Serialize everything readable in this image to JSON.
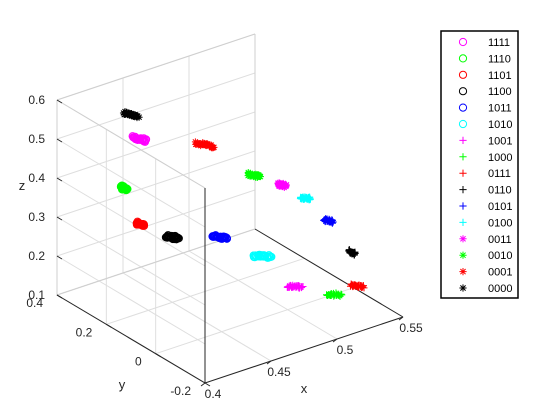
{
  "chart_data": {
    "type": "scatter",
    "projection": "3d",
    "xlabel": "x",
    "ylabel": "y",
    "zlabel": "z",
    "xlim": [
      0.4,
      0.55
    ],
    "ylim": [
      -0.2,
      0.4
    ],
    "zlim": [
      0.1,
      0.6
    ],
    "xticks": [
      "0.4",
      "0.45",
      "0.5",
      "0.55"
    ],
    "yticks": [
      "-0.2",
      "0",
      "0.2",
      "0.4"
    ],
    "zticks": [
      "0.1",
      "0.2",
      "0.3",
      "0.4",
      "0.5",
      "0.6"
    ],
    "grid": true,
    "legend_position": "right",
    "series": [
      {
        "name": "1111",
        "marker": "o",
        "color": "#ff00ff",
        "x": 0.44,
        "y": 0.28,
        "z": 0.5,
        "dx": 0.004,
        "dy": 0.03
      },
      {
        "name": "1110",
        "marker": "o",
        "color": "#00ff00",
        "x": 0.421,
        "y": 0.24,
        "z": 0.41,
        "dx": 0.001,
        "dy": 0.02
      },
      {
        "name": "1101",
        "marker": "o",
        "color": "#ff0000",
        "x": 0.422,
        "y": 0.18,
        "z": 0.34,
        "dx": 0.002,
        "dy": 0.02
      },
      {
        "name": "1100",
        "marker": "o",
        "color": "#000000",
        "x": 0.433,
        "y": 0.11,
        "z": 0.32,
        "dx": 0.004,
        "dy": 0.03
      },
      {
        "name": "1011",
        "marker": "o",
        "color": "#0000ff",
        "x": 0.456,
        "y": 0.04,
        "z": 0.32,
        "dx": 0.006,
        "dy": 0.03
      },
      {
        "name": "1010",
        "marker": "o",
        "color": "#00ffff",
        "x": 0.477,
        "y": -0.02,
        "z": 0.27,
        "dx": 0.008,
        "dy": 0.03
      },
      {
        "name": "1001",
        "marker": "+",
        "color": "#ff00ff",
        "x": 0.5,
        "y": -0.03,
        "z": 0.17,
        "dx": 0.008,
        "dy": 0.02
      },
      {
        "name": "1000",
        "marker": "+",
        "color": "#00ff00",
        "x": 0.522,
        "y": -0.07,
        "z": 0.14,
        "dx": 0.008,
        "dy": 0.02
      },
      {
        "name": "0111",
        "marker": "+",
        "color": "#ff0000",
        "x": 0.534,
        "y": -0.1,
        "z": 0.16,
        "dx": 0.006,
        "dy": 0.02
      },
      {
        "name": "0110",
        "marker": "+",
        "color": "#000000",
        "x": 0.53,
        "y": -0.1,
        "z": 0.25,
        "dx": 0.001,
        "dy": 0.02
      },
      {
        "name": "0101",
        "marker": "+",
        "color": "#0000ff",
        "x": 0.516,
        "y": -0.08,
        "z": 0.34,
        "dx": 0.003,
        "dy": 0.02
      },
      {
        "name": "0100",
        "marker": "+",
        "color": "#00ffff",
        "x": 0.504,
        "y": -0.05,
        "z": 0.4,
        "dx": 0.004,
        "dy": 0.02
      },
      {
        "name": "0011",
        "marker": "*",
        "color": "#ff00ff",
        "x": 0.494,
        "y": -0.01,
        "z": 0.43,
        "dx": 0.003,
        "dy": 0.02
      },
      {
        "name": "0010",
        "marker": "*",
        "color": "#00ff00",
        "x": 0.482,
        "y": 0.04,
        "z": 0.45,
        "dx": 0.004,
        "dy": 0.03
      },
      {
        "name": "0001",
        "marker": "*",
        "color": "#ff0000",
        "x": 0.467,
        "y": 0.16,
        "z": 0.5,
        "dx": 0.006,
        "dy": 0.04
      },
      {
        "name": "0000",
        "marker": "*",
        "color": "#000000",
        "x": 0.443,
        "y": 0.33,
        "z": 0.54,
        "dx": 0.004,
        "dy": 0.04
      }
    ]
  }
}
